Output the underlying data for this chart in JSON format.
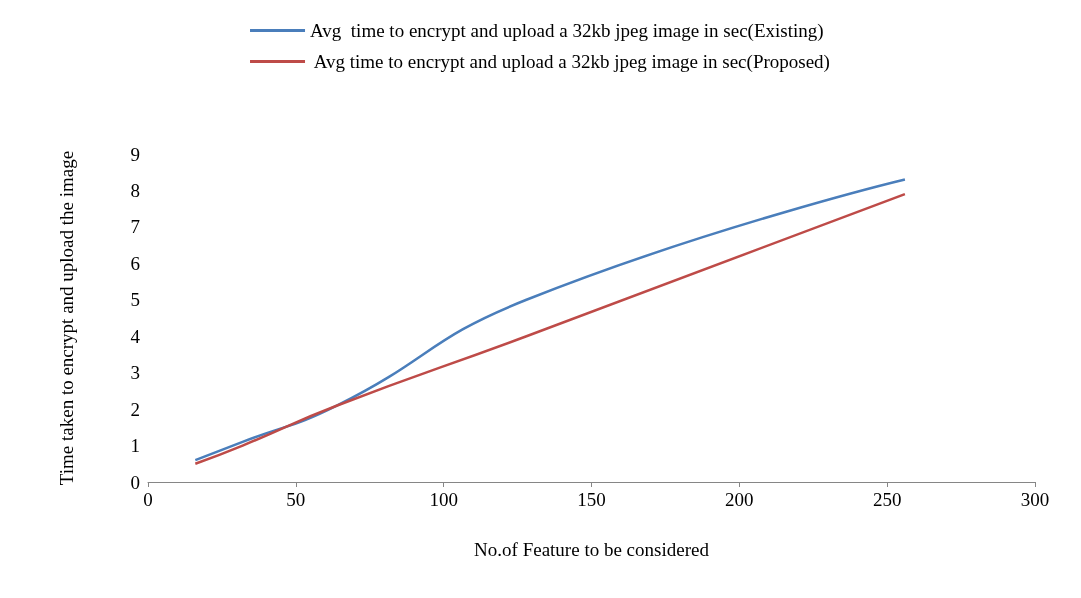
{
  "chart_data": {
    "type": "line",
    "xlabel": "No.of Feature to be considered",
    "ylabel": "Time taken to encrypt and upload the image",
    "x": [
      16,
      32,
      64,
      128,
      256
    ],
    "series": [
      {
        "name": "Avg  time to encrypt and upload a 32kb jpeg image in sec(Existing)",
        "color": "#4a7ebb",
        "values": [
          0.6,
          1.1,
          2.1,
          5.0,
          8.3
        ]
      },
      {
        "name": " Avg time to encrypt and upload a 32kb jpeg image in sec(Proposed)",
        "color": "#be4b48",
        "values": [
          0.5,
          1.0,
          2.1,
          4.0,
          7.9
        ]
      }
    ],
    "xlim": [
      0,
      300
    ],
    "xticks": [
      0,
      50,
      100,
      150,
      200,
      250,
      300
    ],
    "ylim": [
      0,
      9
    ],
    "yticks": [
      0,
      1,
      2,
      3,
      4,
      5,
      6,
      7,
      8,
      9
    ],
    "grid": false,
    "legend": "top",
    "marker": "none",
    "line_style": "solid"
  }
}
